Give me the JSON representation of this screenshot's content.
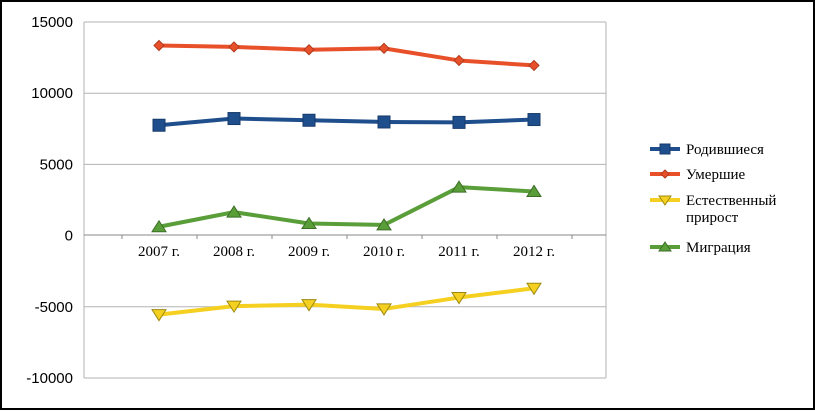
{
  "chart_data": {
    "type": "line",
    "categories": [
      "2007 г.",
      "2008 г.",
      "2009 г.",
      "2010 г.",
      "2011 г.",
      "2012 г."
    ],
    "ylim": [
      -10000,
      15000
    ],
    "yticks": [
      15000,
      10000,
      5000,
      0,
      -5000,
      -10000
    ],
    "ytick_labels": [
      "15000",
      "10000",
      "5000",
      "0",
      "-5000",
      "-10000"
    ],
    "grid": true,
    "legend_position": "right",
    "series": [
      {
        "name": "Родившиеся",
        "values": [
          7750,
          8220,
          8100,
          7980,
          7950,
          8150
        ],
        "color": "#1f4e8c",
        "marker": "square"
      },
      {
        "name": "Умершие",
        "values": [
          13350,
          13250,
          13050,
          13150,
          12300,
          11950
        ],
        "color": "#e8502a",
        "marker": "diamond"
      },
      {
        "name": "Естественный прирост",
        "legend_lines": [
          "Естественный",
          "прирост"
        ],
        "values": [
          -5550,
          -4950,
          -4850,
          -5150,
          -4350,
          -3700
        ],
        "color": "#f5d020",
        "marker": "triangle-down"
      },
      {
        "name": "Миграция",
        "values": [
          620,
          1650,
          850,
          750,
          3400,
          3100
        ],
        "color": "#5a9e3a",
        "marker": "triangle-up"
      }
    ]
  }
}
